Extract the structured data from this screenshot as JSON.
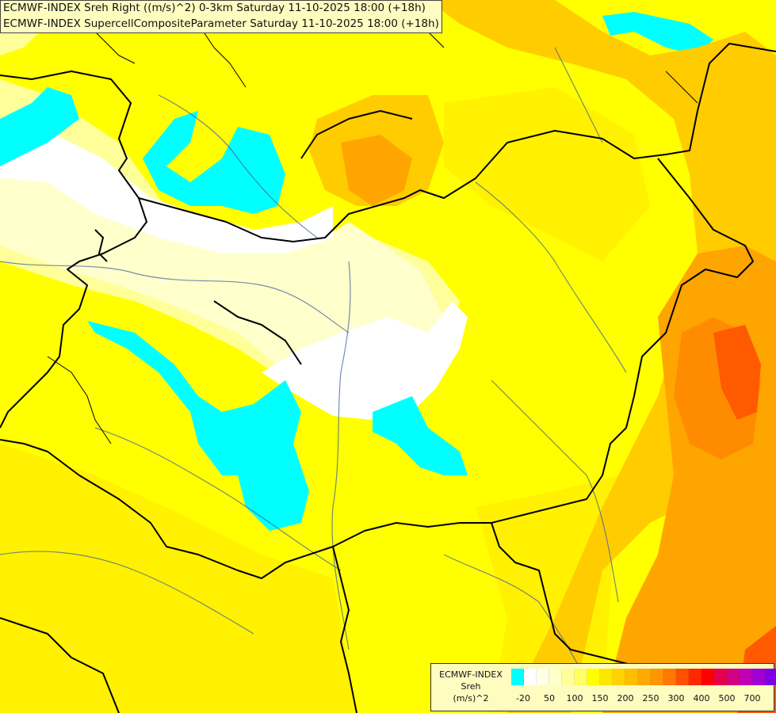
{
  "title": {
    "line1": "ECMWF-INDEX Sreh Right ((m/s)^2) 0-3km Saturday 11-10-2025 18:00 (+18h)",
    "line2": "ECMWF-INDEX SupercellCompositeParameter Saturday 11-10-2025 18:00 (+18h)"
  },
  "legend": {
    "model": "ECMWF-INDEX",
    "param": "Sreh",
    "unit": "(m/s)^2",
    "colors": [
      "#00ffff",
      "#ffffff",
      "#ffffe6",
      "#ffffc8",
      "#ffff96",
      "#ffff64",
      "#ffff00",
      "#ffe600",
      "#ffd200",
      "#ffbe00",
      "#ffaa00",
      "#ff9600",
      "#ff7800",
      "#ff5000",
      "#ff2800",
      "#ff0000",
      "#e6004b",
      "#d20082",
      "#c000b4",
      "#a000d2",
      "#8000e6",
      "#6000d0",
      "#4000b0",
      "#300090",
      "#200070",
      "#000060"
    ],
    "tick_labels": [
      "-20",
      "50",
      "100",
      "150",
      "200",
      "250",
      "300",
      "400",
      "500",
      "700"
    ]
  },
  "map": {
    "colors": {
      "cyan": "#00ffff",
      "white": "#ffffff",
      "cream": "#ffffcc",
      "pale": "#ffff99",
      "yellow": "#ffff00",
      "yellow_orange": "#ffe600",
      "gold": "#ffcc00",
      "orange": "#ffa500",
      "dark_orange": "#ff8c00",
      "red_orange": "#ff5a00",
      "border": "#000000",
      "river": "#3b5b9a"
    }
  }
}
